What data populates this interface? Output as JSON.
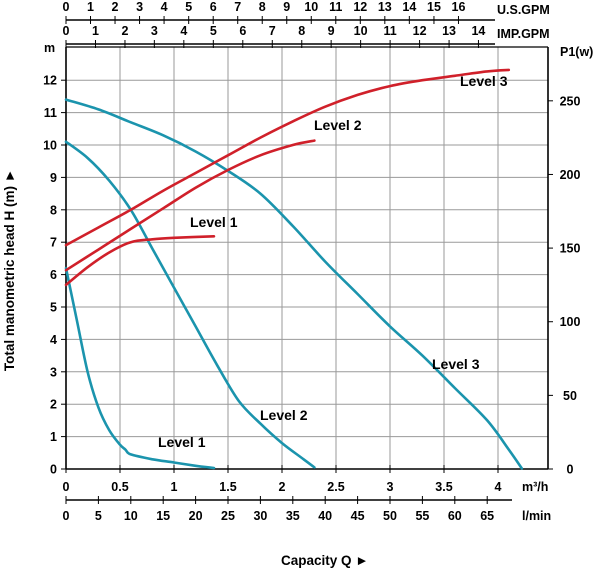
{
  "chart_data": {
    "type": "line",
    "title": "",
    "xlabel": "Capacity Q ►",
    "ylabel": "Total manometric head H (m) ►",
    "y2label": "P1(w)",
    "xlim_m3h": [
      0,
      4.2
    ],
    "ylim_m": [
      0,
      12.5
    ],
    "y2lim_w": [
      0,
      275
    ],
    "ylabel_unit": "m",
    "top_axes": [
      {
        "unit": "U.S.GPM",
        "ticks": [
          "0",
          "1",
          "2",
          "3",
          "4",
          "5",
          "6",
          "7",
          "8",
          "9",
          "10",
          "11",
          "12",
          "13",
          "14",
          "15",
          "16"
        ],
        "tick_values_m3h": [
          0,
          0.227,
          0.454,
          0.681,
          0.908,
          1.136,
          1.363,
          1.59,
          1.817,
          2.044,
          2.271,
          2.498,
          2.725,
          2.952,
          3.179,
          3.407,
          3.634
        ]
      },
      {
        "unit": "IMP.GPM",
        "ticks": [
          "0",
          "1",
          "2",
          "3",
          "4",
          "5",
          "6",
          "7",
          "8",
          "9",
          "10",
          "11",
          "12",
          "13",
          "14"
        ],
        "tick_values_m3h": [
          0,
          0.273,
          0.546,
          0.818,
          1.091,
          1.364,
          1.637,
          1.91,
          2.183,
          2.455,
          2.728,
          3.001,
          3.274,
          3.547,
          3.819
        ]
      }
    ],
    "bottom_axes": [
      {
        "unit": "m³/h",
        "ticks": [
          "0",
          "0.5",
          "1",
          "1.5",
          "2",
          "2.5",
          "3",
          "3.5",
          "4"
        ],
        "tick_values_m3h": [
          0,
          0.5,
          1,
          1.5,
          2,
          2.5,
          3,
          3.5,
          4
        ]
      },
      {
        "unit": "l/min",
        "ticks": [
          "0",
          "5",
          "10",
          "15",
          "20",
          "25",
          "30",
          "35",
          "40",
          "45",
          "50",
          "55",
          "60",
          "65"
        ],
        "tick_values_m3h": [
          0,
          0.3,
          0.6,
          0.9,
          1.2,
          1.5,
          1.8,
          2.1,
          2.4,
          2.7,
          3.0,
          3.3,
          3.6,
          3.9
        ]
      }
    ],
    "y_ticks": [
      "0",
      "1",
      "2",
      "3",
      "4",
      "5",
      "6",
      "7",
      "8",
      "9",
      "10",
      "11",
      "12"
    ],
    "y2_ticks": [
      "0",
      "50",
      "100",
      "150",
      "200",
      "250"
    ],
    "y2_tick_values": [
      0,
      50,
      100,
      150,
      200,
      250
    ],
    "head_series": [
      {
        "name": "Level 1",
        "axis": "head",
        "points": [
          [
            0,
            6.2
          ],
          [
            0.1,
            4.6
          ],
          [
            0.2,
            3.0
          ],
          [
            0.3,
            1.9
          ],
          [
            0.4,
            1.2
          ],
          [
            0.5,
            0.75
          ],
          [
            0.55,
            0.6
          ],
          [
            0.6,
            0.45
          ],
          [
            0.8,
            0.3
          ],
          [
            1.0,
            0.2
          ],
          [
            1.2,
            0.1
          ],
          [
            1.37,
            0.03
          ]
        ]
      },
      {
        "name": "Level 2",
        "axis": "head",
        "points": [
          [
            0,
            10.1
          ],
          [
            0.2,
            9.6
          ],
          [
            0.4,
            8.9
          ],
          [
            0.6,
            8.0
          ],
          [
            0.8,
            6.8
          ],
          [
            1.0,
            5.6
          ],
          [
            1.2,
            4.4
          ],
          [
            1.4,
            3.2
          ],
          [
            1.6,
            2.1
          ],
          [
            1.8,
            1.4
          ],
          [
            2.0,
            0.8
          ],
          [
            2.2,
            0.3
          ],
          [
            2.3,
            0.05
          ]
        ]
      },
      {
        "name": "Level 3",
        "axis": "head",
        "points": [
          [
            0,
            11.4
          ],
          [
            0.3,
            11.1
          ],
          [
            0.6,
            10.7
          ],
          [
            0.9,
            10.3
          ],
          [
            1.2,
            9.8
          ],
          [
            1.5,
            9.2
          ],
          [
            1.8,
            8.5
          ],
          [
            2.1,
            7.5
          ],
          [
            2.4,
            6.4
          ],
          [
            2.7,
            5.4
          ],
          [
            3.0,
            4.4
          ],
          [
            3.3,
            3.5
          ],
          [
            3.6,
            2.5
          ],
          [
            3.9,
            1.5
          ],
          [
            4.1,
            0.6
          ],
          [
            4.22,
            0.02
          ]
        ]
      }
    ],
    "power_series": [
      {
        "name": "Level 1",
        "axis": "P1(w)",
        "points": [
          [
            0,
            125
          ],
          [
            0.2,
            137
          ],
          [
            0.4,
            147
          ],
          [
            0.6,
            154
          ],
          [
            0.8,
            156
          ],
          [
            1.0,
            157
          ],
          [
            1.37,
            158
          ]
        ]
      },
      {
        "name": "Level 2",
        "axis": "P1(w)",
        "points": [
          [
            0,
            135
          ],
          [
            0.3,
            149
          ],
          [
            0.6,
            163
          ],
          [
            0.9,
            177
          ],
          [
            1.2,
            191
          ],
          [
            1.5,
            203
          ],
          [
            1.8,
            213
          ],
          [
            2.1,
            220
          ],
          [
            2.3,
            223
          ]
        ]
      },
      {
        "name": "Level 3",
        "axis": "P1(w)",
        "points": [
          [
            0,
            152
          ],
          [
            0.3,
            164
          ],
          [
            0.6,
            176
          ],
          [
            0.9,
            189
          ],
          [
            1.2,
            201
          ],
          [
            1.5,
            213
          ],
          [
            1.8,
            225
          ],
          [
            2.1,
            236
          ],
          [
            2.4,
            246
          ],
          [
            2.7,
            254
          ],
          [
            3.0,
            260
          ],
          [
            3.3,
            264
          ],
          [
            3.6,
            267
          ],
          [
            3.9,
            270
          ],
          [
            4.1,
            271
          ]
        ]
      }
    ],
    "colors": {
      "head": "#1b94ad",
      "power": "#d0202a",
      "grid": "#9a9a9a",
      "axis": "#000000"
    }
  }
}
